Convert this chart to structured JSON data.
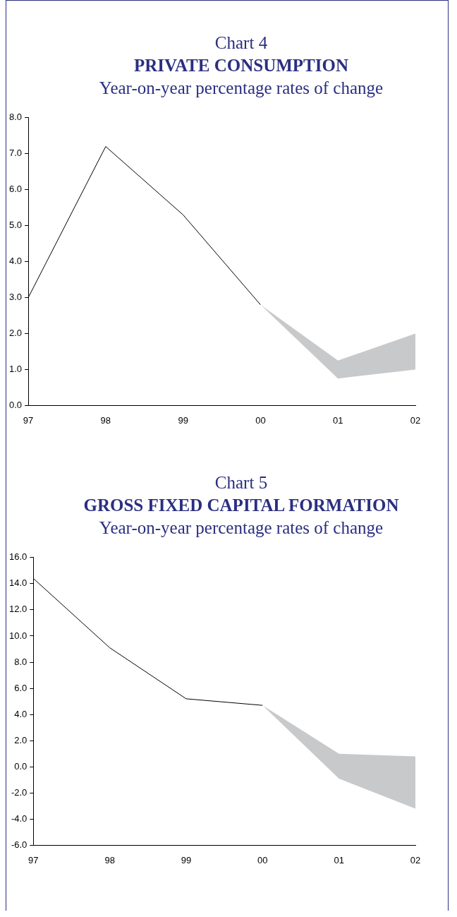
{
  "chart_data": [
    {
      "type": "line",
      "annotations": [
        "Chart 4"
      ],
      "title": "PRIVATE CONSUMPTION",
      "subtitle": "Year-on-year percentage rates of change",
      "categories": [
        "97",
        "98",
        "99",
        "00",
        "01",
        "02"
      ],
      "series": [
        {
          "color": "#000000",
          "values": [
            3.0,
            7.2,
            5.3,
            2.8,
            null,
            null
          ],
          "lower": [
            null,
            null,
            null,
            2.8,
            0.75,
            1.0
          ],
          "upper": [
            null,
            null,
            null,
            2.8,
            1.25,
            2.0
          ]
        }
      ],
      "ylim": [
        0,
        8
      ],
      "yticks": [
        {
          "value": 0,
          "label": "0.0"
        },
        {
          "value": 1,
          "label": "1.0"
        },
        {
          "value": 2,
          "label": "2.0"
        },
        {
          "value": 3,
          "label": "3.0"
        },
        {
          "value": 4,
          "label": "4.0"
        },
        {
          "value": 5,
          "label": "5.0"
        },
        {
          "value": 6,
          "label": "6.0"
        },
        {
          "value": 7,
          "label": "7.0"
        },
        {
          "value": 8,
          "label": "8.0"
        }
      ]
    },
    {
      "type": "line",
      "annotations": [
        "Chart 5"
      ],
      "title": "GROSS FIXED CAPITAL FORMATION",
      "subtitle": "Year-on-year percentage rates of change",
      "categories": [
        "97",
        "98",
        "99",
        "00",
        "01",
        "02"
      ],
      "series": [
        {
          "color": "#000000",
          "values": [
            14.4,
            9.1,
            5.2,
            4.7,
            null,
            null
          ],
          "lower": [
            null,
            null,
            null,
            4.7,
            -0.9,
            -3.2
          ],
          "upper": [
            null,
            null,
            null,
            4.7,
            1.0,
            0.8
          ]
        }
      ],
      "ylim": [
        -6,
        16
      ],
      "yticks": [
        {
          "value": -6,
          "label": "-6.0"
        },
        {
          "value": -4,
          "label": "-4.0"
        },
        {
          "value": -2,
          "label": "-2.0"
        },
        {
          "value": 0,
          "label": "0.0"
        },
        {
          "value": 2,
          "label": "2.0"
        },
        {
          "value": 4,
          "label": "4.0"
        },
        {
          "value": 6,
          "label": "6.0"
        },
        {
          "value": 8,
          "label": "8.0"
        },
        {
          "value": 10,
          "label": "10.0"
        },
        {
          "value": 12,
          "label": "12.0"
        },
        {
          "value": 14,
          "label": "14.0"
        },
        {
          "value": 16,
          "label": "16.0"
        }
      ]
    }
  ]
}
